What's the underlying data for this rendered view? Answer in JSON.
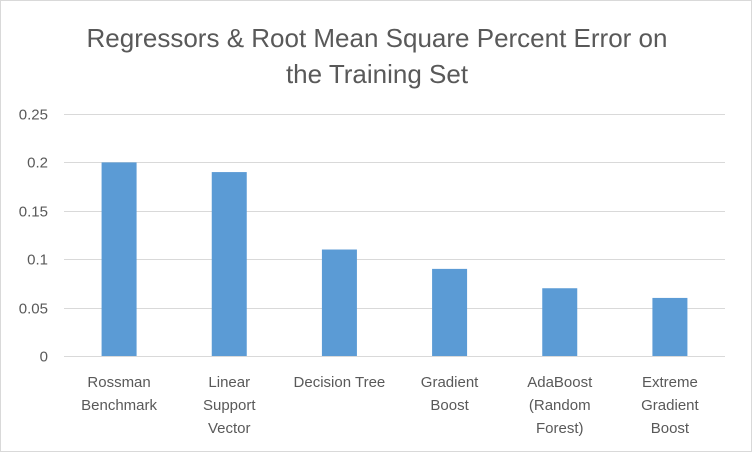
{
  "chart_data": {
    "type": "bar",
    "title_lines": [
      "Regressors & Root Mean Square Percent Error on",
      "the Training Set"
    ],
    "xlabel": "",
    "ylabel": "",
    "categories": [
      [
        "Rossman",
        "Benchmark"
      ],
      [
        "Linear",
        "Support",
        "Vector"
      ],
      [
        "Decision Tree"
      ],
      [
        "Gradient",
        "Boost"
      ],
      [
        "AdaBoost",
        "(Random",
        "Forest)"
      ],
      [
        "Extreme",
        "Gradient",
        "Boost"
      ]
    ],
    "values": [
      0.2,
      0.19,
      0.11,
      0.09,
      0.07,
      0.06
    ],
    "ylim": [
      0,
      0.25
    ],
    "yticks": [
      0,
      0.05,
      0.1,
      0.15,
      0.2,
      0.25
    ],
    "ytick_labels": [
      "0",
      "0.05",
      "0.1",
      "0.15",
      "0.2",
      "0.25"
    ],
    "grid": true,
    "legend": "none",
    "bar_color": "#5b9bd5"
  }
}
